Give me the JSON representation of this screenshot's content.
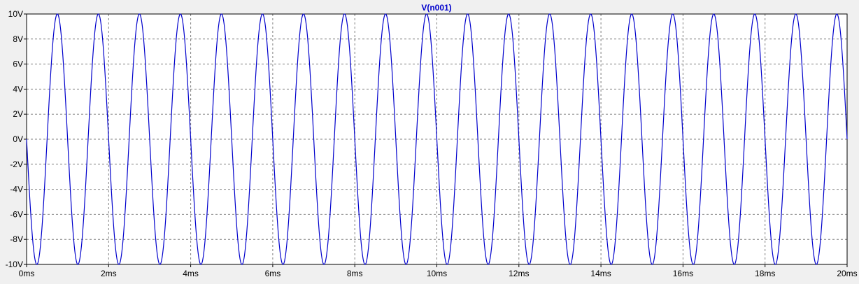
{
  "chart_data": {
    "type": "line",
    "title": "V(n001)",
    "xlabel": "",
    "ylabel": "",
    "x_ticks": [
      "0ms",
      "2ms",
      "4ms",
      "6ms",
      "8ms",
      "10ms",
      "12ms",
      "14ms",
      "16ms",
      "18ms",
      "20ms"
    ],
    "y_ticks": [
      "10V",
      "8V",
      "6V",
      "4V",
      "2V",
      "0V",
      "-2V",
      "-4V",
      "-6V",
      "-8V",
      "-10V"
    ],
    "xlim": [
      0,
      20
    ],
    "ylim": [
      -10,
      10
    ],
    "x_unit": "ms",
    "y_unit": "V",
    "grid": true,
    "series": [
      {
        "name": "V(n001)",
        "color": "#0000cc",
        "waveform": "sine",
        "amplitude": 10,
        "frequency_hz": 1000,
        "phase_deg": 180
      }
    ]
  },
  "colors": {
    "background": "#f0f0f0",
    "plot_background": "#ffffff",
    "grid": "#808080",
    "axis": "#000000",
    "trace": "#0000cc",
    "title": "#0000cc"
  }
}
